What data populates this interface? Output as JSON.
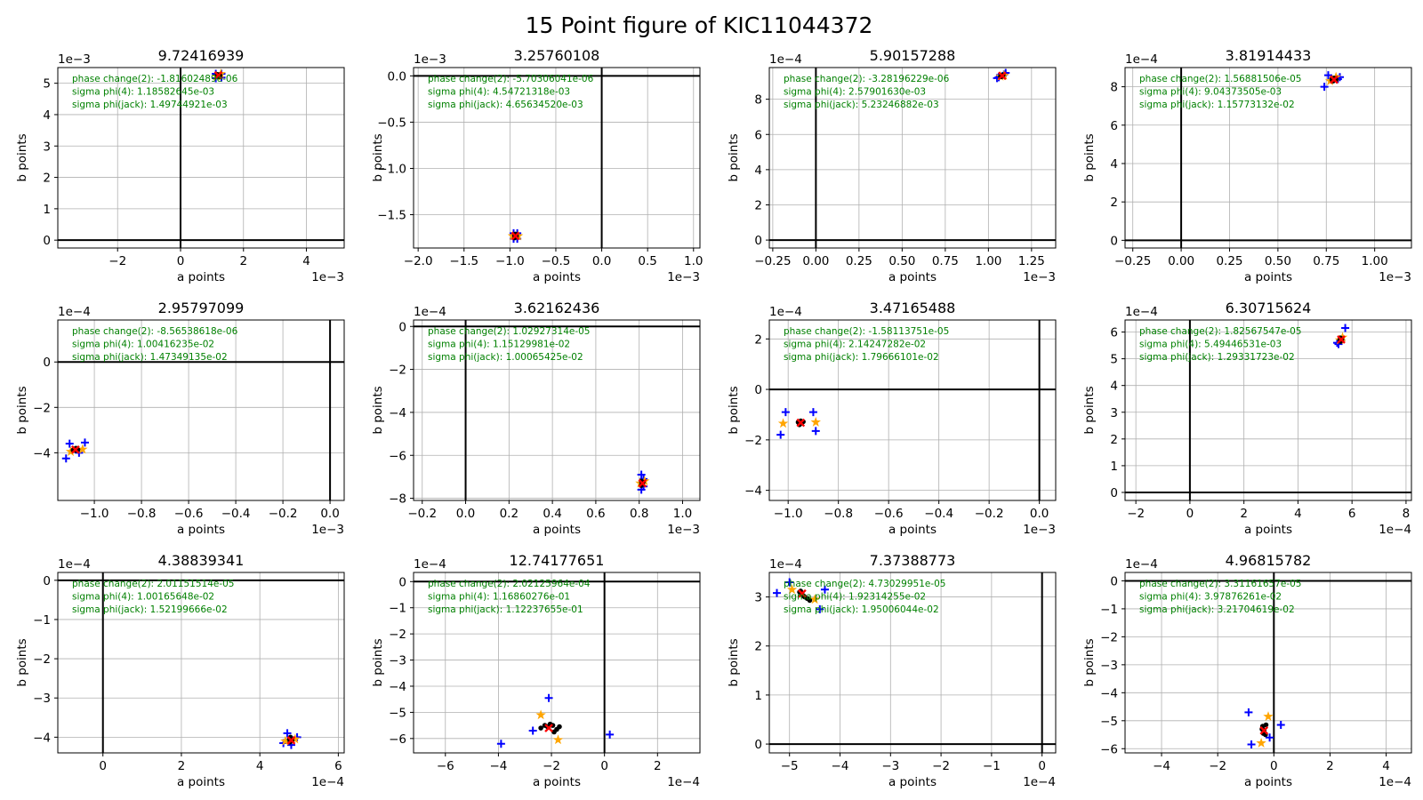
{
  "figure_title": "15 Point figure of KIC11044372",
  "colors": {
    "annotation": "#008000",
    "plus_marker": "#0000ff",
    "star_marker": "#ffa500",
    "dot_marker": "#000000",
    "x_marker": "#ff0000",
    "grid": "#b0b0b0"
  },
  "chart_data": [
    {
      "type": "scatter",
      "title": "9.72416939",
      "xlabel": "a points",
      "ylabel": "b points",
      "x_offset_text": "1e−3",
      "y_offset_text": "1e−3",
      "xlim": [
        -3.9,
        5.2
      ],
      "ylim": [
        -0.25,
        5.5
      ],
      "xticks": [
        -2,
        0,
        2,
        4
      ],
      "xticklabels": [
        "−2",
        "0",
        "2",
        "4"
      ],
      "yticks": [
        0,
        1,
        2,
        3,
        4,
        5
      ],
      "yticklabels": [
        "0",
        "1",
        "2",
        "3",
        "4",
        "5"
      ],
      "annotations": [
        "phase change(2): -1.81602489e-06",
        "sigma phi(4): 1.18582645e-03",
        "sigma phi(jack): 1.49744921e-03"
      ],
      "plus_points": [
        [
          1.12,
          5.3
        ],
        [
          1.3,
          5.3
        ],
        [
          1.12,
          5.16
        ],
        [
          1.3,
          5.18
        ]
      ],
      "star_points": [
        [
          1.15,
          5.22
        ],
        [
          1.28,
          5.3
        ]
      ],
      "dot_points": [
        [
          1.18,
          5.24
        ],
        [
          1.22,
          5.27
        ],
        [
          1.2,
          5.22
        ],
        [
          1.25,
          5.25
        ],
        [
          1.17,
          5.28
        ],
        [
          1.23,
          5.21
        ],
        [
          1.21,
          5.26
        ],
        [
          1.19,
          5.25
        ]
      ],
      "x_point": [
        1.2,
        5.25
      ]
    },
    {
      "type": "scatter",
      "title": "3.25760108",
      "xlabel": "a points",
      "ylabel": "b points",
      "x_offset_text": "1e−3",
      "y_offset_text": "1e−3",
      "xlim": [
        -2.05,
        1.07
      ],
      "ylim": [
        -1.86,
        0.09
      ],
      "xticks": [
        -2.0,
        -1.5,
        -1.0,
        -0.5,
        0.0,
        0.5,
        1.0
      ],
      "xticklabels": [
        "−2.0",
        "−1.5",
        "−1.0",
        "−0.5",
        "0.0",
        "0.5",
        "1.0"
      ],
      "yticks": [
        -1.5,
        -1.0,
        -0.5,
        0.0
      ],
      "yticklabels": [
        "−1.5",
        "−1.0",
        "−0.5",
        "0.0"
      ],
      "annotations": [
        "phase change(2): -5.70306041e-06",
        "sigma phi(4): 4.54721318e-03",
        "sigma phi(jack): 4.65634520e-03"
      ],
      "plus_points": [
        [
          -0.96,
          -1.7
        ],
        [
          -0.92,
          -1.7
        ],
        [
          -0.96,
          -1.76
        ],
        [
          -0.92,
          -1.76
        ]
      ],
      "star_points": [
        [
          -0.97,
          -1.73
        ],
        [
          -0.91,
          -1.73
        ]
      ],
      "dot_points": [
        [
          -0.95,
          -1.72
        ],
        [
          -0.93,
          -1.74
        ],
        [
          -0.94,
          -1.73
        ],
        [
          -0.94,
          -1.71
        ],
        [
          -0.95,
          -1.75
        ],
        [
          -0.93,
          -1.72
        ]
      ],
      "x_point": [
        -0.94,
        -1.73
      ]
    },
    {
      "type": "scatter",
      "title": "5.90157288",
      "xlabel": "a points",
      "ylabel": "b points",
      "x_offset_text": "1e−3",
      "y_offset_text": "1e−4",
      "xlim": [
        -0.27,
        1.39
      ],
      "ylim": [
        -0.45,
        9.8
      ],
      "xticks": [
        -0.25,
        0.0,
        0.25,
        0.5,
        0.75,
        1.0,
        1.25
      ],
      "xticklabels": [
        "−0.25",
        "0.00",
        "0.25",
        "0.50",
        "0.75",
        "1.00",
        "1.25"
      ],
      "yticks": [
        0,
        2,
        4,
        6,
        8
      ],
      "yticklabels": [
        "0",
        "2",
        "4",
        "6",
        "8"
      ],
      "annotations": [
        "phase change(2): -3.28196229e-06",
        "sigma phi(4): 2.57901630e-03",
        "sigma phi(jack): 5.23246882e-03"
      ],
      "plus_points": [
        [
          1.05,
          9.2
        ],
        [
          1.1,
          9.5
        ],
        [
          1.09,
          9.4
        ],
        [
          1.06,
          9.25
        ]
      ],
      "star_points": [
        [
          1.07,
          9.3
        ],
        [
          1.09,
          9.35
        ]
      ],
      "dot_points": [
        [
          1.07,
          9.3
        ],
        [
          1.08,
          9.35
        ],
        [
          1.075,
          9.28
        ],
        [
          1.085,
          9.38
        ],
        [
          1.08,
          9.32
        ]
      ],
      "x_point": [
        1.08,
        9.33
      ]
    },
    {
      "type": "scatter",
      "title": "3.81914433",
      "xlabel": "a points",
      "ylabel": "b points",
      "x_offset_text": "1e−3",
      "y_offset_text": "1e−4",
      "xlim": [
        -0.29,
        1.19
      ],
      "ylim": [
        -0.4,
        9.0
      ],
      "xticks": [
        -0.25,
        0.0,
        0.25,
        0.5,
        0.75,
        1.0
      ],
      "xticklabels": [
        "−0.25",
        "0.00",
        "0.25",
        "0.50",
        "0.75",
        "1.00"
      ],
      "yticks": [
        0,
        2,
        4,
        6,
        8
      ],
      "yticklabels": [
        "0",
        "2",
        "4",
        "6",
        "8"
      ],
      "annotations": [
        "phase change(2): 1.56881506e-05",
        "sigma phi(4): 9.04373505e-03",
        "sigma phi(jack): 1.15773132e-02"
      ],
      "plus_points": [
        [
          0.74,
          8.0
        ],
        [
          0.76,
          8.6
        ],
        [
          0.82,
          8.5
        ],
        [
          0.81,
          8.4
        ]
      ],
      "star_points": [
        [
          0.77,
          8.3
        ],
        [
          0.8,
          8.5
        ]
      ],
      "dot_points": [
        [
          0.78,
          8.35
        ],
        [
          0.79,
          8.4
        ],
        [
          0.785,
          8.3
        ],
        [
          0.8,
          8.38
        ],
        [
          0.79,
          8.45
        ],
        [
          0.78,
          8.42
        ]
      ],
      "x_point": [
        0.79,
        8.37
      ]
    },
    {
      "type": "scatter",
      "title": "2.95797099",
      "xlabel": "a points",
      "ylabel": "b points",
      "x_offset_text": "1e−3",
      "y_offset_text": "1e−4",
      "xlim": [
        -1.155,
        0.06
      ],
      "ylim": [
        -6.1,
        1.85
      ],
      "xticks": [
        -1.0,
        -0.8,
        -0.6,
        -0.4,
        -0.2,
        0.0
      ],
      "xticklabels": [
        "−1.0",
        "−0.8",
        "−0.6",
        "−0.4",
        "−0.2",
        "0.0"
      ],
      "yticks": [
        -4,
        -2,
        0
      ],
      "yticklabels": [
        "−4",
        "−2",
        "0"
      ],
      "annotations": [
        "phase change(2): -8.56538618e-06",
        "sigma phi(4): 1.00416235e-02",
        "sigma phi(jack): 1.47349135e-02"
      ],
      "plus_points": [
        [
          -1.12,
          -4.25
        ],
        [
          -1.105,
          -3.6
        ],
        [
          -1.04,
          -3.55
        ],
        [
          -1.065,
          -4.0
        ]
      ],
      "star_points": [
        [
          -1.1,
          -3.95
        ],
        [
          -1.05,
          -3.85
        ]
      ],
      "dot_points": [
        [
          -1.085,
          -3.85
        ],
        [
          -1.075,
          -3.82
        ],
        [
          -1.08,
          -3.9
        ],
        [
          -1.07,
          -3.86
        ],
        [
          -1.09,
          -3.88
        ],
        [
          -1.078,
          -3.8
        ]
      ],
      "x_point": [
        -1.08,
        -3.86
      ]
    },
    {
      "type": "scatter",
      "title": "3.62162436",
      "xlabel": "a points",
      "ylabel": "b points",
      "x_offset_text": "1e−3",
      "y_offset_text": "1e−4",
      "xlim": [
        -0.24,
        1.08
      ],
      "ylim": [
        -8.1,
        0.3
      ],
      "xticks": [
        -0.2,
        0.0,
        0.2,
        0.4,
        0.6,
        0.8,
        1.0
      ],
      "xticklabels": [
        "−0.2",
        "0.0",
        "0.2",
        "0.4",
        "0.6",
        "0.8",
        "1.0"
      ],
      "yticks": [
        -8,
        -6,
        -4,
        -2,
        0
      ],
      "yticklabels": [
        "−8",
        "−6",
        "−4",
        "−2",
        "0"
      ],
      "annotations": [
        "phase change(2): 1.02927314e-05",
        "sigma phi(4): 1.15129981e-02",
        "sigma phi(jack): 1.00065425e-02"
      ],
      "plus_points": [
        [
          0.81,
          -6.9
        ],
        [
          0.82,
          -7.1
        ],
        [
          0.81,
          -7.6
        ],
        [
          0.82,
          -7.45
        ]
      ],
      "star_points": [
        [
          0.805,
          -7.3
        ],
        [
          0.825,
          -7.2
        ]
      ],
      "dot_points": [
        [
          0.81,
          -7.2
        ],
        [
          0.815,
          -7.3
        ],
        [
          0.812,
          -7.35
        ],
        [
          0.818,
          -7.25
        ],
        [
          0.81,
          -7.4
        ]
      ],
      "x_point": [
        0.815,
        -7.3
      ]
    },
    {
      "type": "scatter",
      "title": "3.47165488",
      "xlabel": "a points",
      "ylabel": "b points",
      "x_offset_text": "1e−3",
      "y_offset_text": "1e−4",
      "xlim": [
        -1.075,
        0.065
      ],
      "ylim": [
        -4.4,
        2.75
      ],
      "xticks": [
        -1.0,
        -0.8,
        -0.6,
        -0.4,
        -0.2,
        0.0
      ],
      "xticklabels": [
        "−1.0",
        "−0.8",
        "−0.6",
        "−0.4",
        "−0.2",
        "0.0"
      ],
      "yticks": [
        -4,
        -2,
        0,
        2
      ],
      "yticklabels": [
        "−4",
        "−2",
        "0",
        "2"
      ],
      "annotations": [
        "phase change(2): -1.58113751e-05",
        "sigma phi(4): 2.14247282e-02",
        "sigma phi(jack): 1.79666101e-02"
      ],
      "plus_points": [
        [
          -1.03,
          -1.8
        ],
        [
          -1.01,
          -0.9
        ],
        [
          -0.9,
          -0.9
        ],
        [
          -0.89,
          -1.65
        ]
      ],
      "star_points": [
        [
          -1.02,
          -1.35
        ],
        [
          -0.89,
          -1.3
        ]
      ],
      "dot_points": [
        [
          -0.96,
          -1.3
        ],
        [
          -0.95,
          -1.35
        ],
        [
          -0.94,
          -1.28
        ],
        [
          -0.955,
          -1.4
        ],
        [
          -0.945,
          -1.32
        ],
        [
          -0.95,
          -1.25
        ]
      ],
      "x_point": [
        -0.95,
        -1.32
      ]
    },
    {
      "type": "scatter",
      "title": "6.30715624",
      "xlabel": "a points",
      "ylabel": "b points",
      "x_offset_text": "1e−4",
      "y_offset_text": "1e−4",
      "xlim": [
        -2.4,
        8.2
      ],
      "ylim": [
        -0.3,
        6.45
      ],
      "xticks": [
        -2,
        0,
        2,
        4,
        6,
        8
      ],
      "xticklabels": [
        "−2",
        "0",
        "2",
        "4",
        "6",
        "8"
      ],
      "yticks": [
        0,
        1,
        2,
        3,
        4,
        5,
        6
      ],
      "yticklabels": [
        "0",
        "1",
        "2",
        "3",
        "4",
        "5",
        "6"
      ],
      "annotations": [
        "phase change(2): 1.82567547e-05",
        "sigma phi(4): 5.49446531e-03",
        "sigma phi(jack): 1.29331723e-02"
      ],
      "plus_points": [
        [
          5.45,
          5.6
        ],
        [
          5.75,
          6.15
        ],
        [
          5.6,
          5.7
        ],
        [
          5.5,
          5.55
        ]
      ],
      "star_points": [
        [
          5.55,
          5.7
        ],
        [
          5.65,
          5.8
        ]
      ],
      "dot_points": [
        [
          5.55,
          5.7
        ],
        [
          5.6,
          5.75
        ],
        [
          5.58,
          5.65
        ],
        [
          5.62,
          5.72
        ],
        [
          5.57,
          5.78
        ]
      ],
      "x_point": [
        5.6,
        5.72
      ]
    },
    {
      "type": "scatter",
      "title": "4.38839341",
      "xlabel": "a points",
      "ylabel": "b points",
      "x_offset_text": "1e−4",
      "y_offset_text": "1e−4",
      "xlim": [
        -1.15,
        6.15
      ],
      "ylim": [
        -4.4,
        0.2
      ],
      "xticks": [
        0,
        2,
        4,
        6
      ],
      "xticklabels": [
        "0",
        "2",
        "4",
        "6"
      ],
      "yticks": [
        -4,
        -3,
        -2,
        -1,
        0
      ],
      "yticklabels": [
        "−4",
        "−3",
        "−2",
        "−1",
        "0"
      ],
      "annotations": [
        "phase change(2): 2.01151514e-05",
        "sigma phi(4): 1.00165648e-02",
        "sigma phi(jack): 1.52199666e-02"
      ],
      "plus_points": [
        [
          4.7,
          -3.9
        ],
        [
          4.95,
          -4.0
        ],
        [
          4.6,
          -4.15
        ],
        [
          4.8,
          -4.2
        ]
      ],
      "star_points": [
        [
          4.65,
          -4.1
        ],
        [
          4.9,
          -4.05
        ]
      ],
      "dot_points": [
        [
          4.75,
          -4.05
        ],
        [
          4.8,
          -4.1
        ],
        [
          4.78,
          -4.0
        ],
        [
          4.82,
          -4.08
        ],
        [
          4.77,
          -4.12
        ]
      ],
      "x_point": [
        4.8,
        -4.08
      ]
    },
    {
      "type": "scatter",
      "title": "12.74177651",
      "xlabel": "a points",
      "ylabel": "b points",
      "x_offset_text": "1e−4",
      "y_offset_text": "1e−4",
      "xlim": [
        -7.2,
        3.6
      ],
      "ylim": [
        -6.55,
        0.35
      ],
      "xticks": [
        -6,
        -4,
        -2,
        0,
        2
      ],
      "xticklabels": [
        "−6",
        "−4",
        "−2",
        "0",
        "2"
      ],
      "yticks": [
        -6,
        -5,
        -4,
        -3,
        -2,
        -1,
        0
      ],
      "yticklabels": [
        "−6",
        "−5",
        "−4",
        "−3",
        "−2",
        "−1",
        "0"
      ],
      "annotations": [
        "phase change(2): 2.02125964e-04",
        "sigma phi(4): 1.16860276e-01",
        "sigma phi(jack): 1.12237655e-01"
      ],
      "plus_points": [
        [
          -3.9,
          -6.2
        ],
        [
          -2.7,
          -5.7
        ],
        [
          -2.1,
          -4.45
        ],
        [
          0.2,
          -5.85
        ]
      ],
      "star_points": [
        [
          -2.4,
          -5.1
        ],
        [
          -1.75,
          -6.05
        ]
      ],
      "dot_points": [
        [
          -2.4,
          -5.6
        ],
        [
          -2.25,
          -5.5
        ],
        [
          -2.05,
          -5.45
        ],
        [
          -1.9,
          -5.75
        ],
        [
          -1.7,
          -5.55
        ],
        [
          -1.8,
          -5.65
        ],
        [
          -2.15,
          -5.55
        ],
        [
          -1.95,
          -5.5
        ]
      ],
      "x_point": [
        -2.1,
        -5.6
      ]
    },
    {
      "type": "scatter",
      "title": "7.37388773",
      "xlabel": "a points",
      "ylabel": "b points",
      "x_offset_text": "1e−4",
      "y_offset_text": "1e−4",
      "xlim": [
        -5.4,
        0.27
      ],
      "ylim": [
        -0.18,
        3.5
      ],
      "xticks": [
        -5,
        -4,
        -3,
        -2,
        -1,
        0
      ],
      "xticklabels": [
        "−5",
        "−4",
        "−3",
        "−2",
        "−1",
        "0"
      ],
      "yticks": [
        0,
        1,
        2,
        3
      ],
      "yticklabels": [
        "0",
        "1",
        "2",
        "3"
      ],
      "annotations": [
        "phase change(2): 4.73029951e-05",
        "sigma phi(4): 1.92314255e-02",
        "sigma phi(jack): 1.95006044e-02"
      ],
      "plus_points": [
        [
          -5.25,
          3.08
        ],
        [
          -5.0,
          3.3
        ],
        [
          -4.3,
          3.15
        ],
        [
          -4.4,
          2.75
        ]
      ],
      "star_points": [
        [
          -4.95,
          3.15
        ],
        [
          -4.5,
          2.95
        ]
      ],
      "dot_points": [
        [
          -4.8,
          3.1
        ],
        [
          -4.75,
          3.05
        ],
        [
          -4.7,
          3.0
        ],
        [
          -4.65,
          2.97
        ],
        [
          -4.6,
          2.93
        ],
        [
          -4.78,
          3.12
        ],
        [
          -4.72,
          3.02
        ]
      ],
      "x_point": [
        -4.75,
        3.07
      ]
    },
    {
      "type": "scatter",
      "title": "4.96815782",
      "xlabel": "a points",
      "ylabel": "b points",
      "x_offset_text": "1e−4",
      "y_offset_text": "1e−4",
      "xlim": [
        -5.3,
        4.9
      ],
      "ylim": [
        -6.15,
        0.3
      ],
      "xticks": [
        -4,
        -2,
        0,
        2,
        4
      ],
      "xticklabels": [
        "−4",
        "−2",
        "0",
        "2",
        "4"
      ],
      "yticks": [
        -6,
        -5,
        -4,
        -3,
        -2,
        -1,
        0
      ],
      "yticklabels": [
        "−6",
        "−5",
        "−4",
        "−3",
        "−2",
        "−1",
        "0"
      ],
      "annotations": [
        "phase change(2): 3.31161657e-05",
        "sigma phi(4): 3.97876261e-02",
        "sigma phi(jack): 3.21704619e-02"
      ],
      "plus_points": [
        [
          -0.9,
          -4.7
        ],
        [
          -0.8,
          -5.85
        ],
        [
          0.25,
          -5.15
        ],
        [
          -0.15,
          -5.6
        ]
      ],
      "star_points": [
        [
          -0.2,
          -4.85
        ],
        [
          -0.45,
          -5.8
        ]
      ],
      "dot_points": [
        [
          -0.4,
          -5.2
        ],
        [
          -0.35,
          -5.35
        ],
        [
          -0.3,
          -5.5
        ],
        [
          -0.42,
          -5.3
        ],
        [
          -0.28,
          -5.15
        ],
        [
          -0.38,
          -5.45
        ]
      ],
      "x_point": [
        -0.35,
        -5.35
      ]
    }
  ]
}
